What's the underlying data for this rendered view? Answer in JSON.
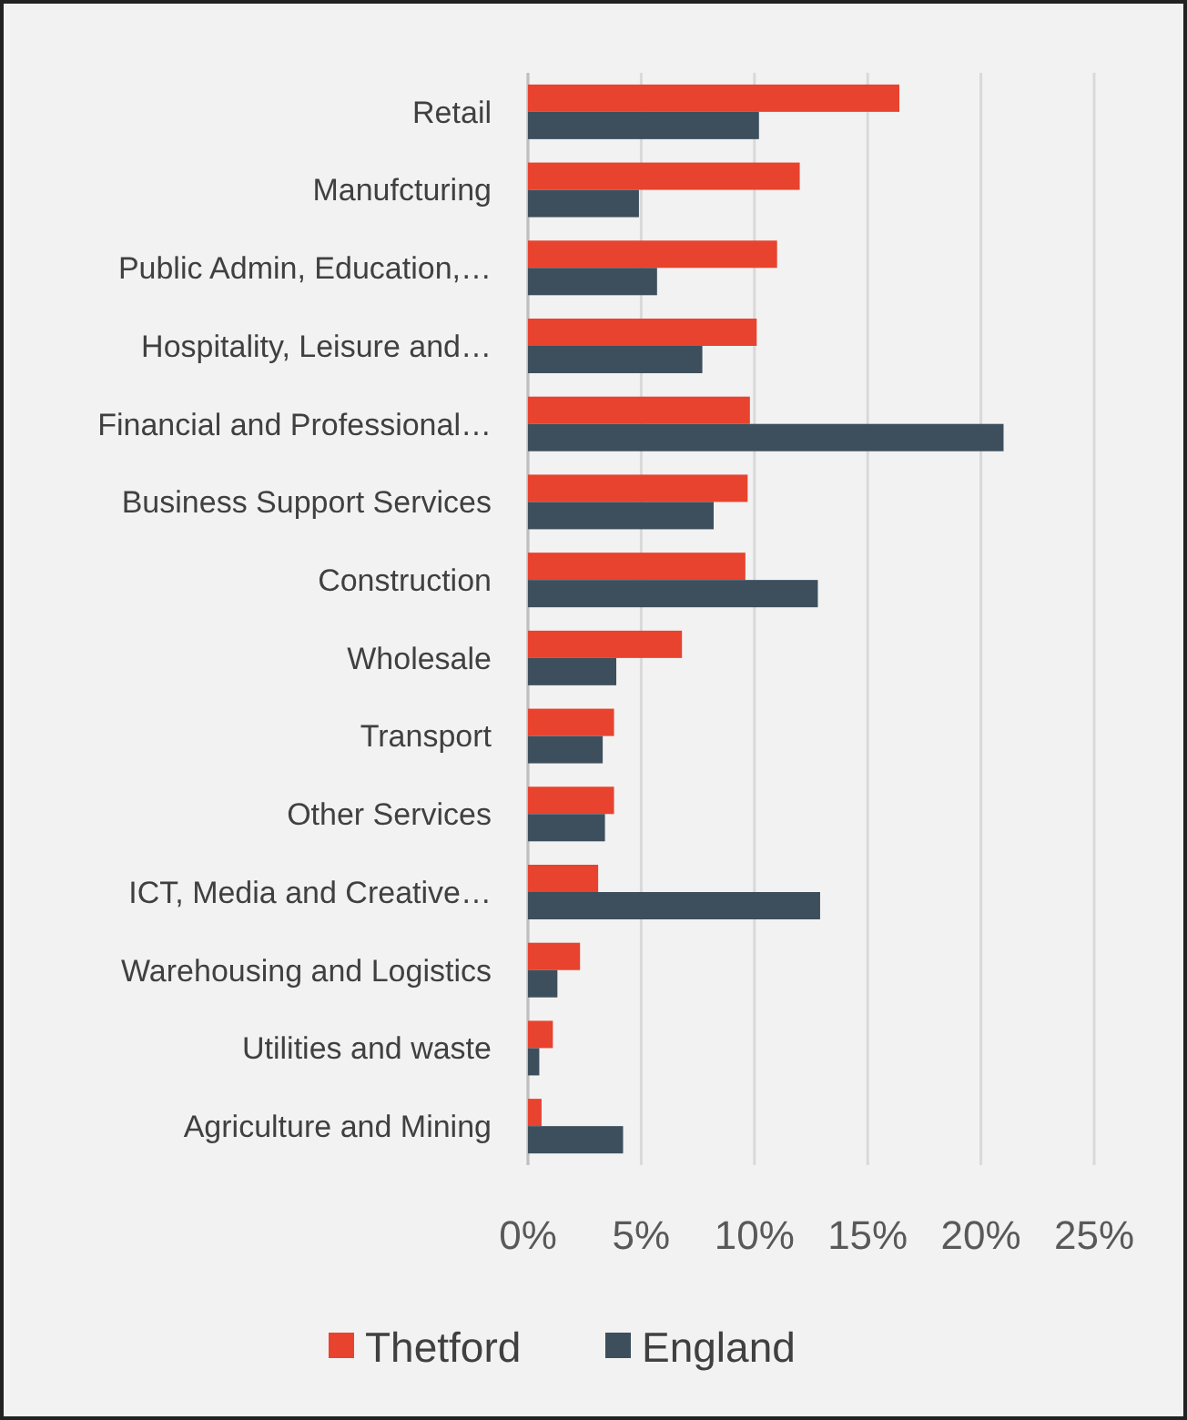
{
  "chart_data": {
    "type": "bar",
    "orientation": "horizontal",
    "categories": [
      "Retail",
      "Manufcturing",
      "Public Admin, Education,…",
      "Hospitality, Leisure and…",
      "Financial and Professional…",
      "Business Support Services",
      "Construction",
      "Wholesale",
      "Transport",
      "Other Services",
      "ICT, Media and Creative…",
      "Warehousing and Logistics",
      "Utilities and waste",
      "Agriculture and Mining"
    ],
    "series": [
      {
        "name": "Thetford",
        "color": "#e8432e",
        "values": [
          16.4,
          12.0,
          11.0,
          10.1,
          9.8,
          9.7,
          9.6,
          6.8,
          3.8,
          3.8,
          3.1,
          2.3,
          1.1,
          0.6
        ]
      },
      {
        "name": "England",
        "color": "#3d4f5c",
        "values": [
          10.2,
          4.9,
          5.7,
          7.7,
          21.0,
          8.2,
          12.8,
          3.9,
          3.3,
          3.4,
          12.9,
          1.3,
          0.5,
          4.2
        ]
      }
    ],
    "xlim": [
      0,
      25
    ],
    "xticks": [
      {
        "value": 0,
        "label": "0%"
      },
      {
        "value": 5,
        "label": "5%"
      },
      {
        "value": 10,
        "label": "10%"
      },
      {
        "value": 15,
        "label": "15%"
      },
      {
        "value": 20,
        "label": "20%"
      },
      {
        "value": 25,
        "label": "25%"
      }
    ],
    "grid": "x",
    "legend": "bottom"
  }
}
